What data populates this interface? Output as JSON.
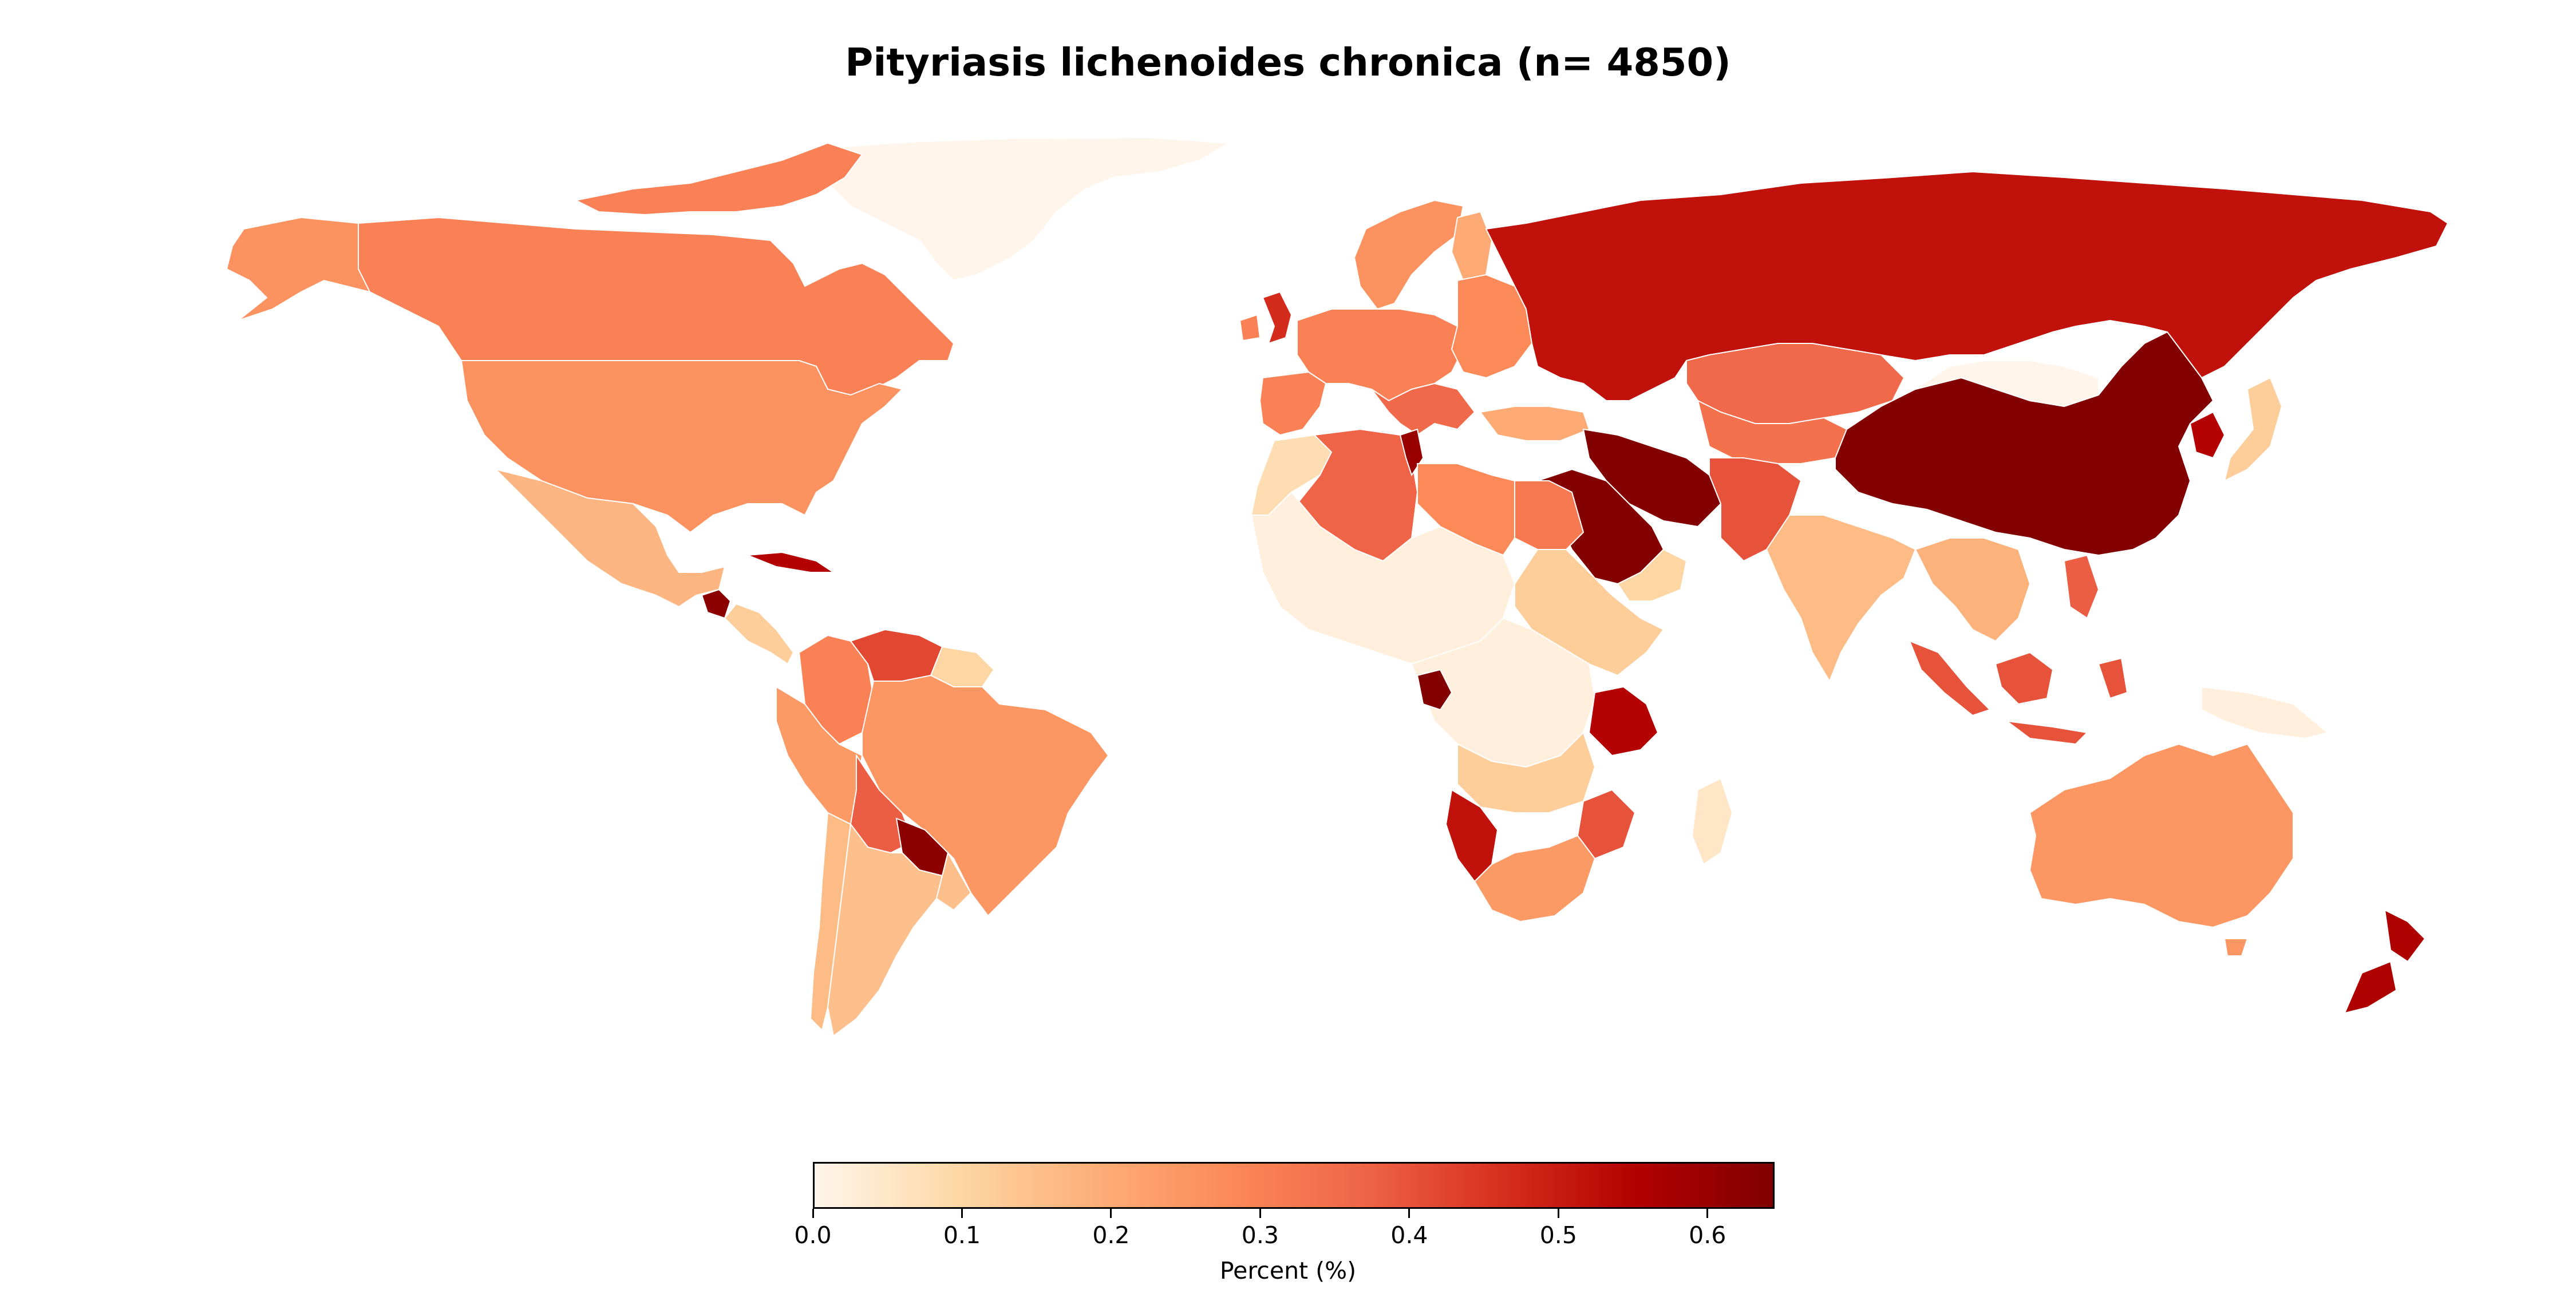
{
  "title": "Pityriasis lichenoides chronica (n= 4850)",
  "colorbar": {
    "label": "Percent (%)",
    "min": 0.0,
    "max": 0.645,
    "ticks": [
      {
        "value": 0.0,
        "label": "0.0"
      },
      {
        "value": 0.1,
        "label": "0.1"
      },
      {
        "value": 0.2,
        "label": "0.2"
      },
      {
        "value": 0.3,
        "label": "0.3"
      },
      {
        "value": 0.4,
        "label": "0.4"
      },
      {
        "value": 0.5,
        "label": "0.5"
      },
      {
        "value": 0.6,
        "label": "0.6"
      }
    ],
    "colormap": [
      "#fff5eb",
      "#fdd9a8",
      "#fdb07a",
      "#fc8b59",
      "#ef6548",
      "#d7301f",
      "#b30000",
      "#7f0000"
    ]
  },
  "chart_data": {
    "type": "choropleth",
    "title": "Pityriasis lichenoides chronica (n= 4850)",
    "colorbar_label": "Percent (%)",
    "value_range": [
      0.0,
      0.645
    ],
    "regions": [
      {
        "name": "Greenland",
        "value": 0.0
      },
      {
        "name": "Canada",
        "value": 0.3
      },
      {
        "name": "Alaska (USA)",
        "value": 0.26
      },
      {
        "name": "United States",
        "value": 0.26
      },
      {
        "name": "Mexico",
        "value": 0.17
      },
      {
        "name": "Guatemala",
        "value": 0.62
      },
      {
        "name": "Cuba",
        "value": 0.55
      },
      {
        "name": "Colombia",
        "value": 0.3
      },
      {
        "name": "Venezuela",
        "value": 0.42
      },
      {
        "name": "Peru",
        "value": 0.24
      },
      {
        "name": "Brazil",
        "value": 0.25
      },
      {
        "name": "Bolivia",
        "value": 0.38
      },
      {
        "name": "Paraguay",
        "value": 0.62
      },
      {
        "name": "Argentina",
        "value": 0.15
      },
      {
        "name": "Chile",
        "value": 0.16
      },
      {
        "name": "Russia",
        "value": 0.52
      },
      {
        "name": "Kazakhstan",
        "value": 0.36
      },
      {
        "name": "China",
        "value": 0.64
      },
      {
        "name": "Mongolia",
        "value": 0.0
      },
      {
        "name": "Iran",
        "value": 0.64
      },
      {
        "name": "Saudi Arabia",
        "value": 0.64
      },
      {
        "name": "India",
        "value": 0.16
      },
      {
        "name": "Japan",
        "value": 0.12
      },
      {
        "name": "Indonesia",
        "value": 0.4
      },
      {
        "name": "Australia",
        "value": 0.25
      },
      {
        "name": "New Zealand",
        "value": 0.56
      },
      {
        "name": "Algeria",
        "value": 0.37
      },
      {
        "name": "Libya",
        "value": 0.28
      },
      {
        "name": "Egypt",
        "value": 0.32
      },
      {
        "name": "Gabon",
        "value": 0.64
      },
      {
        "name": "Tanzania",
        "value": 0.55
      },
      {
        "name": "Namibia",
        "value": 0.52
      },
      {
        "name": "South Africa",
        "value": 0.24
      },
      {
        "name": "Madagascar",
        "value": 0.05
      },
      {
        "name": "United Kingdom",
        "value": 0.47
      },
      {
        "name": "Europe (other)",
        "value": 0.3
      }
    ]
  }
}
